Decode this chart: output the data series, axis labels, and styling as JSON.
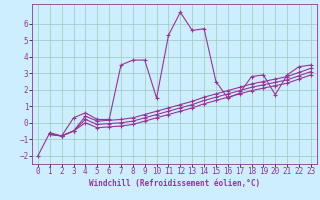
{
  "xlabel": "Windchill (Refroidissement éolien,°C)",
  "bg_color": "#cceeff",
  "line_color": "#993399",
  "xlim": [
    -0.5,
    23.5
  ],
  "ylim": [
    -2.5,
    7.2
  ],
  "xticks": [
    0,
    1,
    2,
    3,
    4,
    5,
    6,
    7,
    8,
    9,
    10,
    11,
    12,
    13,
    14,
    15,
    16,
    17,
    18,
    19,
    20,
    21,
    22,
    23
  ],
  "yticks": [
    -2,
    -1,
    0,
    1,
    2,
    3,
    4,
    5,
    6
  ],
  "series1_x": [
    0,
    1,
    2,
    3,
    4,
    5,
    6,
    7,
    8,
    9,
    10,
    11,
    12,
    13,
    14,
    15,
    16,
    17,
    18,
    19,
    20,
    21,
    22,
    23
  ],
  "series1_y": [
    -2.0,
    -0.6,
    -0.8,
    0.3,
    0.6,
    0.2,
    0.2,
    3.5,
    3.8,
    3.8,
    1.5,
    5.3,
    6.7,
    5.6,
    5.7,
    2.5,
    1.5,
    1.8,
    2.8,
    2.9,
    1.7,
    2.9,
    3.4,
    3.5
  ],
  "series2_x": [
    1,
    2,
    3,
    4,
    5,
    6,
    7,
    8,
    9,
    10,
    11,
    12,
    13,
    14,
    15,
    16,
    17,
    18,
    19,
    20,
    21,
    22,
    23
  ],
  "series2_y": [
    -0.7,
    -0.8,
    -0.5,
    0.4,
    0.1,
    0.15,
    0.2,
    0.3,
    0.5,
    0.7,
    0.9,
    1.1,
    1.3,
    1.55,
    1.75,
    1.95,
    2.15,
    2.35,
    2.5,
    2.65,
    2.8,
    3.05,
    3.3
  ],
  "series3_x": [
    1,
    2,
    3,
    4,
    5,
    6,
    7,
    8,
    9,
    10,
    11,
    12,
    13,
    14,
    15,
    16,
    17,
    18,
    19,
    20,
    21,
    22,
    23
  ],
  "series3_y": [
    -0.7,
    -0.8,
    -0.5,
    0.2,
    -0.1,
    -0.05,
    0.0,
    0.1,
    0.3,
    0.5,
    0.7,
    0.9,
    1.1,
    1.35,
    1.55,
    1.75,
    1.95,
    2.15,
    2.3,
    2.45,
    2.6,
    2.85,
    3.1
  ],
  "series4_x": [
    1,
    2,
    3,
    4,
    5,
    6,
    7,
    8,
    9,
    10,
    11,
    12,
    13,
    14,
    15,
    16,
    17,
    18,
    19,
    20,
    21,
    22,
    23
  ],
  "series4_y": [
    -0.7,
    -0.8,
    -0.5,
    0.0,
    -0.3,
    -0.25,
    -0.2,
    -0.1,
    0.1,
    0.3,
    0.5,
    0.7,
    0.9,
    1.15,
    1.35,
    1.55,
    1.75,
    1.95,
    2.1,
    2.25,
    2.4,
    2.65,
    2.9
  ],
  "grid_color": "#99ccbb",
  "xlabel_fontsize": 5.5,
  "tick_fontsize": 5.5
}
